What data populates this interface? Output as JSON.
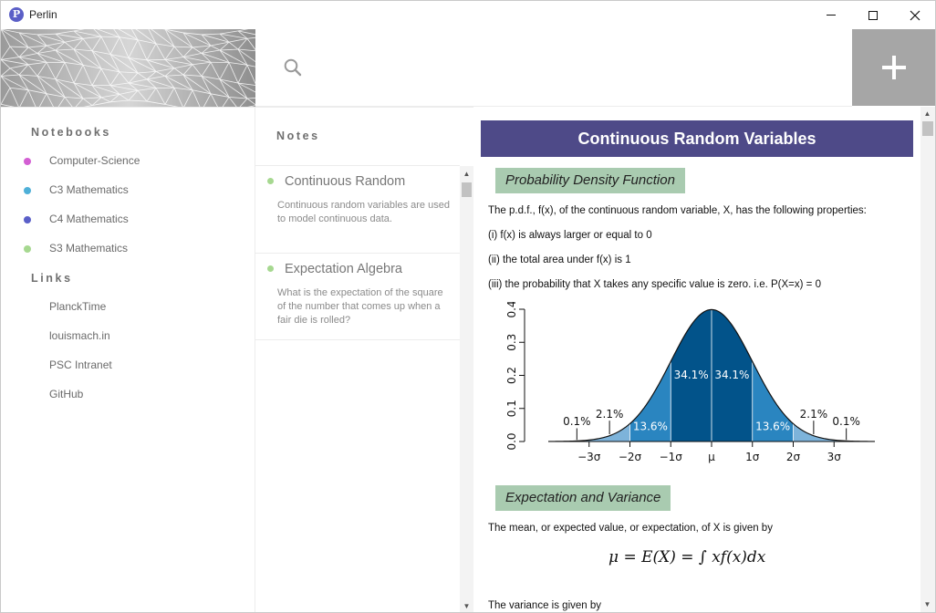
{
  "app": {
    "title": "Perlin",
    "logo_letter": "P"
  },
  "sidebar": {
    "notebooks_title": "Notebooks",
    "notebooks": [
      {
        "label": "Computer-Science",
        "color": "#d35fd3"
      },
      {
        "label": "C3 Mathematics",
        "color": "#4fb0d8"
      },
      {
        "label": "C4 Mathematics",
        "color": "#5a5fc8"
      },
      {
        "label": "S3 Mathematics",
        "color": "#a6d890"
      }
    ],
    "links_title": "Links",
    "links": [
      {
        "label": "PlanckTime"
      },
      {
        "label": "louismach.in"
      },
      {
        "label": "PSC Intranet"
      },
      {
        "label": "GitHub"
      }
    ]
  },
  "notes": {
    "title": "Notes",
    "items": [
      {
        "title": "Continuous Random",
        "excerpt": "Continuous random variables are used to model continuous data."
      },
      {
        "title": "Expectation Algebra",
        "excerpt": "What is the expectation of the square of the number that comes up when a fair die is rolled?"
      }
    ]
  },
  "content": {
    "title": "Continuous Random Variables",
    "section1": "Probability Density Function",
    "p1": "The p.d.f., f(x), of the continuous random variable, X, has the following properties:",
    "p2": "(i) f(x) is always larger or equal to 0",
    "p3": "(ii) the total area under f(x) is 1",
    "p4": "(iii) the probability that X takes any specific value is zero. i.e. P(X=x) = 0",
    "section2": "Expectation and Variance",
    "p5": "The mean, or expected value, or expectation, of X is given by",
    "formula": "μ = E(X) = ∫ xf(x)dx",
    "p6": "The variance is given by"
  },
  "chart_data": {
    "type": "area",
    "x_ticks": [
      "−3σ",
      "−2σ",
      "−1σ",
      "μ",
      "1σ",
      "2σ",
      "3σ"
    ],
    "y_ticks": [
      "0.0",
      "0.1",
      "0.2",
      "0.3",
      "0.4"
    ],
    "ylim": [
      0,
      0.4
    ],
    "xlim": [
      -4,
      4
    ],
    "bands": [
      {
        "range": [
          -3,
          -2
        ],
        "label": "2.1%"
      },
      {
        "range": [
          -2,
          -1
        ],
        "label": "13.6%"
      },
      {
        "range": [
          -1,
          0
        ],
        "label": "34.1%"
      },
      {
        "range": [
          0,
          1
        ],
        "label": "34.1%"
      },
      {
        "range": [
          1,
          2
        ],
        "label": "13.6%"
      },
      {
        "range": [
          2,
          3
        ],
        "label": "2.1%"
      }
    ],
    "tails": [
      {
        "side": "left",
        "label": "0.1%"
      },
      {
        "side": "right",
        "label": "0.1%"
      }
    ],
    "colors": {
      "inner": "#02538a",
      "middle": "#2a85c0",
      "outer": "#7db3da"
    }
  }
}
